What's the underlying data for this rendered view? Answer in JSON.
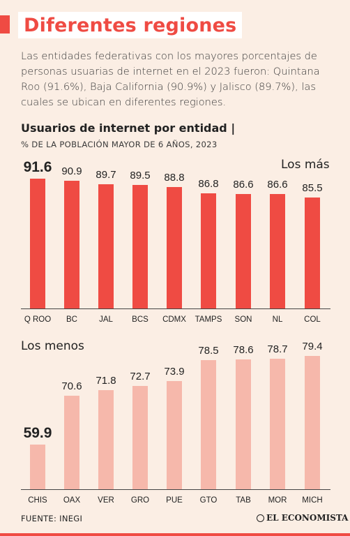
{
  "header": {
    "title": "Diferentes regiones",
    "intro": "Las entidades federativas con los mayores porcentajes de personas usuarias de internet en el 2023 fueron: Quintana Roo (91.6%), Baja California (90.9%) y Jalisco (89.7%), las cuales se ubican en diferentes regiones."
  },
  "chart_data": [
    {
      "type": "bar",
      "title": "Usuarios de internet por entidad |",
      "subtitle": "% DE LA POBLACIÓN MAYOR DE 6 AÑOS, 2023",
      "group_label": "Los más",
      "categories": [
        "Q ROO",
        "BC",
        "JAL",
        "BCS",
        "CDMX",
        "TAMPS",
        "SON",
        "NL",
        "COL"
      ],
      "values": [
        91.6,
        90.9,
        89.7,
        89.5,
        88.8,
        86.8,
        86.6,
        86.6,
        85.5
      ],
      "value_labels": [
        "91.6",
        "90.9",
        "89.7",
        "89.5",
        "88.8",
        "86.8",
        "86.6",
        "86.6",
        "85.5"
      ],
      "highlight_index": 0,
      "color": "#ef4b43"
    },
    {
      "type": "bar",
      "group_label": "Los menos",
      "categories": [
        "CHIS",
        "OAX",
        "VER",
        "GRO",
        "PUE",
        "GTO",
        "TAB",
        "MOR",
        "MICH"
      ],
      "values": [
        59.9,
        70.6,
        71.8,
        72.7,
        73.9,
        78.5,
        78.6,
        78.7,
        79.4
      ],
      "value_labels": [
        "59.9",
        "70.6",
        "71.8",
        "72.7",
        "73.9",
        "78.5",
        "78.6",
        "78.7",
        "79.4"
      ],
      "highlight_index": 0,
      "color": "#f6b8ab"
    }
  ],
  "footer": {
    "source": "FUENTE: INEGI",
    "logo_text": "EL ECONOMISTA"
  }
}
